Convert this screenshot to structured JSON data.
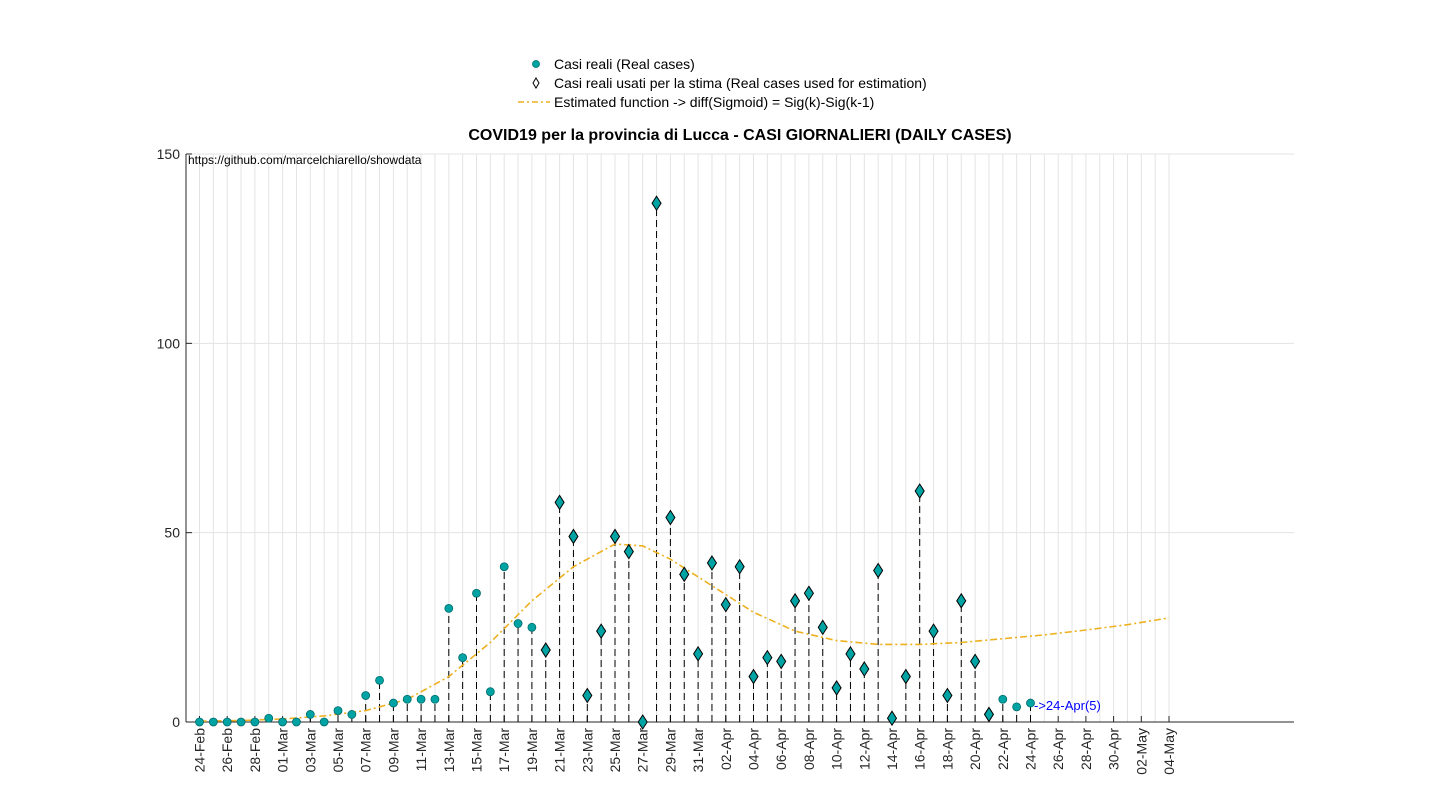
{
  "chart_data": {
    "type": "scatter",
    "title": "COVID19 per la provincia di Lucca - CASI GIORNALIERI (DAILY CASES)",
    "watermark": "https://github.com/marcelchiarello/showdata",
    "annotation": "->24-Apr(5)",
    "xlabel": "",
    "ylabel": "",
    "ylim": [
      0,
      150
    ],
    "yticks": [
      0,
      50,
      100,
      150
    ],
    "grid": true,
    "legend_position": "top",
    "colors": {
      "real": "#00a3a3",
      "fit": "#edb120",
      "axis": "#262626"
    },
    "xtick_labels": [
      "24-Feb",
      "26-Feb",
      "28-Feb",
      "01-Mar",
      "03-Mar",
      "05-Mar",
      "07-Mar",
      "09-Mar",
      "11-Mar",
      "13-Mar",
      "15-Mar",
      "17-Mar",
      "19-Mar",
      "21-Mar",
      "23-Mar",
      "25-Mar",
      "27-Mar",
      "29-Mar",
      "31-Mar",
      "02-Apr",
      "04-Apr",
      "06-Apr",
      "08-Apr",
      "10-Apr",
      "12-Apr",
      "14-Apr",
      "16-Apr",
      "18-Apr",
      "20-Apr",
      "22-Apr",
      "24-Apr",
      "26-Apr",
      "28-Apr",
      "30-Apr",
      "02-May",
      "04-May"
    ],
    "series": [
      {
        "name": "Casi reali (Real cases)",
        "marker": "circle",
        "x": [
          "24-Feb",
          "25-Feb",
          "26-Feb",
          "27-Feb",
          "28-Feb",
          "29-Feb",
          "01-Mar",
          "02-Mar",
          "03-Mar",
          "04-Mar",
          "05-Mar",
          "06-Mar",
          "07-Mar",
          "08-Mar",
          "09-Mar",
          "10-Mar",
          "11-Mar",
          "12-Mar",
          "13-Mar",
          "14-Mar",
          "15-Mar",
          "16-Mar",
          "17-Mar",
          "18-Mar",
          "19-Mar",
          "20-Mar",
          "21-Mar",
          "22-Mar",
          "23-Mar",
          "24-Mar",
          "25-Mar",
          "26-Mar",
          "27-Mar",
          "28-Mar",
          "29-Mar",
          "30-Mar",
          "31-Mar",
          "01-Apr",
          "02-Apr",
          "03-Apr",
          "04-Apr",
          "05-Apr",
          "06-Apr",
          "07-Apr",
          "08-Apr",
          "09-Apr",
          "10-Apr",
          "11-Apr",
          "12-Apr",
          "13-Apr",
          "14-Apr",
          "15-Apr",
          "16-Apr",
          "17-Apr",
          "18-Apr",
          "19-Apr",
          "20-Apr",
          "21-Apr",
          "22-Apr",
          "23-Apr",
          "24-Apr"
        ],
        "values": [
          0,
          0,
          0,
          0,
          0,
          1,
          0,
          0,
          2,
          0,
          3,
          2,
          7,
          11,
          5,
          6,
          6,
          6,
          30,
          17,
          34,
          8,
          41,
          26,
          25,
          19,
          58,
          49,
          7,
          24,
          49,
          45,
          0,
          137,
          54,
          39,
          18,
          42,
          31,
          41,
          12,
          17,
          16,
          32,
          34,
          25,
          9,
          18,
          14,
          40,
          1,
          12,
          61,
          24,
          7,
          32,
          16,
          2,
          6,
          4,
          5
        ]
      },
      {
        "name": "Casi reali usati per la stima (Real cases used for estimation)",
        "marker": "diamond",
        "x": [
          "20-Mar",
          "21-Mar",
          "22-Mar",
          "23-Mar",
          "24-Mar",
          "25-Mar",
          "26-Mar",
          "27-Mar",
          "28-Mar",
          "29-Mar",
          "30-Mar",
          "31-Mar",
          "01-Apr",
          "02-Apr",
          "03-Apr",
          "04-Apr",
          "05-Apr",
          "06-Apr",
          "07-Apr",
          "08-Apr",
          "09-Apr",
          "10-Apr",
          "11-Apr",
          "12-Apr",
          "13-Apr",
          "14-Apr",
          "15-Apr",
          "16-Apr",
          "17-Apr",
          "18-Apr",
          "19-Apr",
          "20-Apr",
          "21-Apr"
        ],
        "values": [
          19,
          58,
          49,
          7,
          24,
          49,
          45,
          0,
          137,
          54,
          39,
          18,
          42,
          31,
          41,
          12,
          17,
          16,
          32,
          34,
          25,
          9,
          18,
          14,
          40,
          1,
          12,
          61,
          24,
          7,
          32,
          16,
          2
        ]
      },
      {
        "name": "Estimated function -> diff(Sigmoid) = Sig(k)-Sig(k-1)",
        "marker": "dash-dot-line",
        "x": [
          "24-Feb",
          "27-Feb",
          "01-Mar",
          "04-Mar",
          "07-Mar",
          "10-Mar",
          "13-Mar",
          "16-Mar",
          "19-Mar",
          "22-Mar",
          "25-Mar",
          "27-Mar",
          "29-Mar",
          "01-Apr",
          "04-Apr",
          "07-Apr",
          "10-Apr",
          "13-Apr",
          "16-Apr",
          "19-Apr",
          "22-Apr",
          "25-Apr",
          "28-Apr",
          "01-May",
          "04-May"
        ],
        "values": [
          0.2,
          0.4,
          0.8,
          1.6,
          3,
          6,
          12,
          21,
          32,
          41,
          47,
          46.5,
          43,
          36,
          29,
          24,
          21.5,
          20.5,
          20.5,
          21,
          22,
          23,
          24.3,
          25.7,
          27.5
        ]
      }
    ]
  }
}
